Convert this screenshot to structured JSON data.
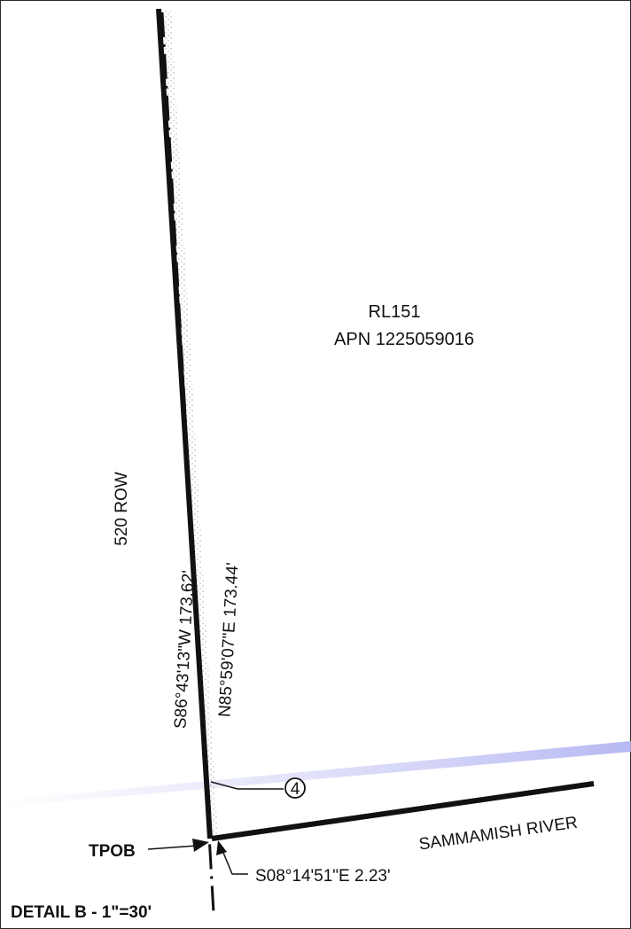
{
  "parcel": {
    "id": "RL151",
    "apn": "APN 1225059016"
  },
  "row_label": "520 ROW",
  "bearings": {
    "west_line": "S86°43'13\"W 173.62'",
    "east_line": "N85°59'07\"E 173.44'",
    "short_leg": "S08°14'51\"E 2.23'"
  },
  "callout_number": "4",
  "tpob_label": "TPOB",
  "river_label": "SAMMAMISH RIVER",
  "detail_title": "DETAIL B - 1\"=30'"
}
